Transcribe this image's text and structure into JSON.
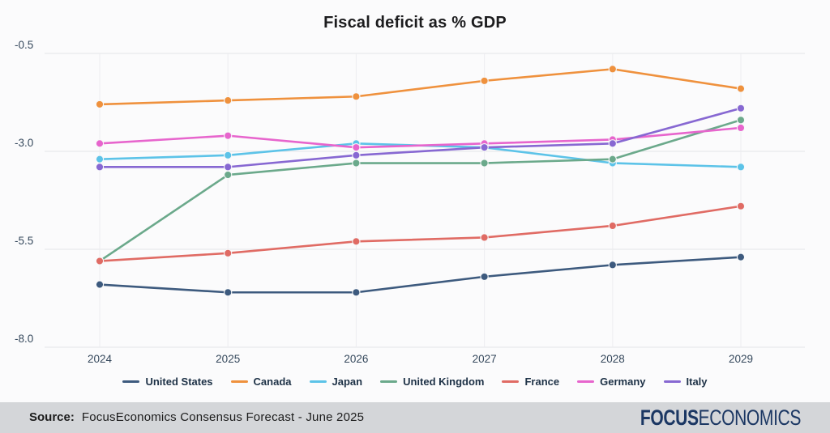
{
  "title": "Fiscal deficit as % GDP",
  "chart_data": {
    "type": "line",
    "x": [
      2024,
      2025,
      2026,
      2027,
      2028,
      2029
    ],
    "series": [
      {
        "name": "United States",
        "color": "#3d5a7e",
        "values": [
          -6.4,
          -6.6,
          -6.6,
          -6.2,
          -5.9,
          -5.7
        ]
      },
      {
        "name": "Canada",
        "color": "#ef913d",
        "values": [
          -1.8,
          -1.7,
          -1.6,
          -1.2,
          -0.9,
          -1.4
        ]
      },
      {
        "name": "Japan",
        "color": "#5cc3e8",
        "values": [
          -3.2,
          -3.1,
          -2.8,
          -2.9,
          -3.3,
          -3.4
        ]
      },
      {
        "name": "United Kingdom",
        "color": "#6ba98b",
        "values": [
          -5.8,
          -3.6,
          -3.3,
          -3.3,
          -3.2,
          -2.2
        ]
      },
      {
        "name": "France",
        "color": "#e06b64",
        "values": [
          -5.8,
          -5.6,
          -5.3,
          -5.2,
          -4.9,
          -4.4
        ]
      },
      {
        "name": "Germany",
        "color": "#e765cd",
        "values": [
          -2.8,
          -2.6,
          -2.9,
          -2.8,
          -2.7,
          -2.4
        ]
      },
      {
        "name": "Italy",
        "color": "#8768d2",
        "values": [
          -3.4,
          -3.4,
          -3.1,
          -2.9,
          -2.8,
          -1.9
        ]
      }
    ],
    "title": "Fiscal deficit as % GDP",
    "xlabel": "",
    "ylabel": "",
    "ylim": [
      -8.0,
      -0.5
    ],
    "yticks": [
      "-0.5",
      "-3.0",
      "-5.5",
      "-8.0"
    ],
    "ytick_values": [
      -0.5,
      -3.0,
      -5.5,
      -8.0
    ],
    "grid": true,
    "legend_position": "bottom"
  },
  "footer": {
    "source_label": "Source:",
    "source_text": "FocusEconomics Consensus Forecast - June 2025",
    "logo_bold": "FOCUS",
    "logo_light": "ECONOMICS"
  },
  "colors": {
    "background": "#fbfbfc",
    "footer_bg": "#d4d6d9",
    "grid_h": "#e3e4e7",
    "grid_v": "#ededf0",
    "axis_text": "#35485c",
    "legend_text": "#1d3146",
    "logo": "#1b3763",
    "title_text": "#1c1c1e"
  }
}
